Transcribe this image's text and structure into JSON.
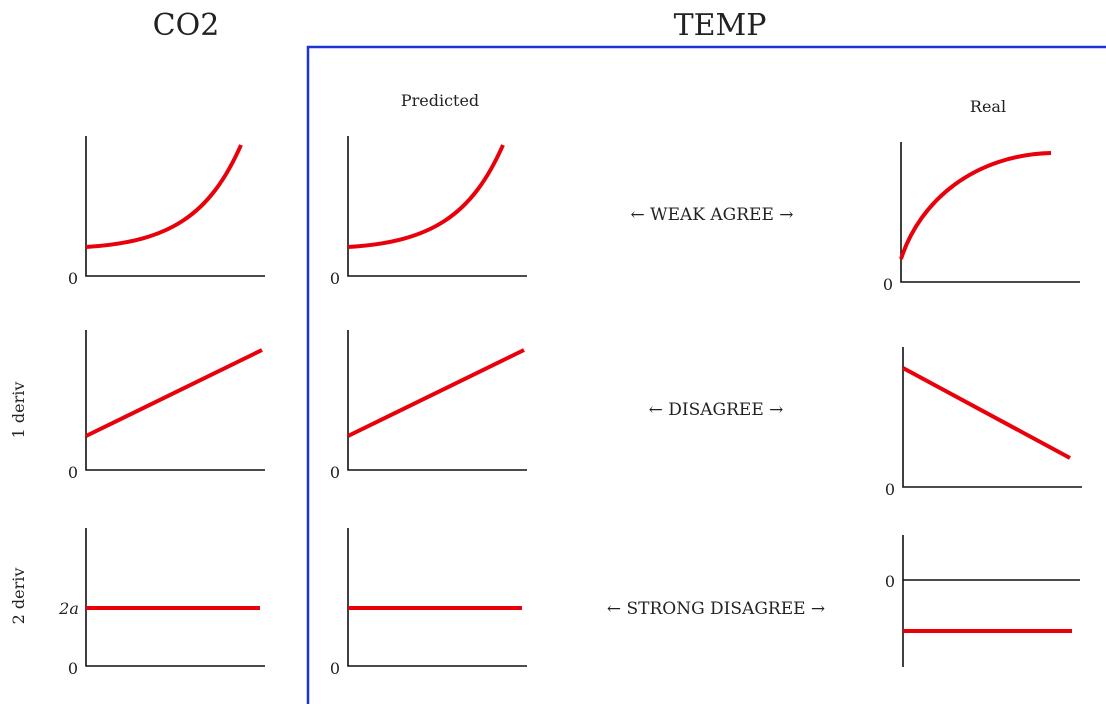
{
  "headers": {
    "co2": "CO2",
    "temp": "TEMP"
  },
  "subheaders": {
    "predicted": "Predicted",
    "real": "Real"
  },
  "row_labels": {
    "first_derivative": "1 deriv",
    "second_derivative": "2 deriv"
  },
  "comparisons": {
    "row1": "← WEAK AGREE →",
    "row2": "← DISAGREE →",
    "row3": "← STRONG DISAGREE →"
  },
  "axis_labels": {
    "zero": "0",
    "two_a": "2a"
  },
  "colors": {
    "curve": "#e8000b",
    "frame": "#1a35d4",
    "axis": "#111111"
  },
  "panels": {
    "co2_level": {
      "shape": "exponential-increase"
    },
    "co2_deriv1": {
      "shape": "linear-increase"
    },
    "co2_deriv2": {
      "shape": "constant-positive"
    },
    "pred_level": {
      "shape": "exponential-increase"
    },
    "pred_deriv1": {
      "shape": "linear-increase"
    },
    "pred_deriv2": {
      "shape": "constant-positive"
    },
    "real_level": {
      "shape": "concave-saturating-increase"
    },
    "real_deriv1": {
      "shape": "linear-decrease"
    },
    "real_deriv2": {
      "shape": "constant-negative"
    }
  }
}
